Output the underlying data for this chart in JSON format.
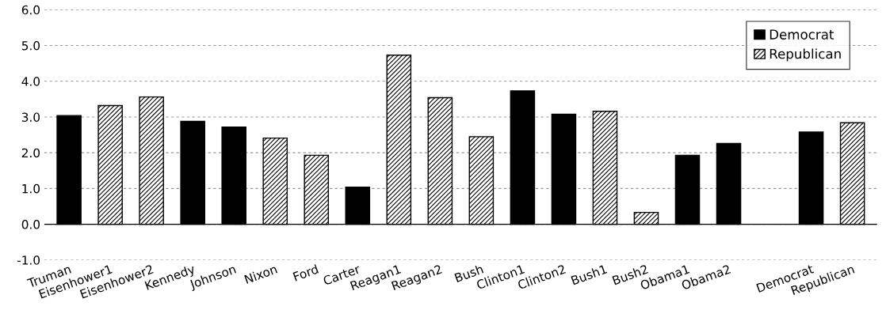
{
  "chart_data": {
    "type": "bar",
    "categories": [
      "Truman",
      "Eisenhower1",
      "Eisenhower2",
      "Kennedy",
      "Johnson",
      "Nixon",
      "Ford",
      "Carter",
      "Reagan1",
      "Reagan2",
      "Bush",
      "Clinton1",
      "Clinton2",
      "Bush1",
      "Bush2",
      "Obama1",
      "Obama2",
      null,
      "Democrat",
      "Republican"
    ],
    "series": [
      {
        "name": "Democrat",
        "color": "#000000",
        "values": [
          3.04,
          null,
          null,
          2.88,
          2.72,
          null,
          null,
          1.04,
          null,
          null,
          null,
          3.73,
          3.08,
          null,
          null,
          1.93,
          2.26,
          null,
          2.58,
          null
        ]
      },
      {
        "name": "Republican",
        "color": "#000000",
        "values": [
          null,
          3.32,
          3.56,
          null,
          null,
          2.41,
          1.93,
          null,
          4.73,
          3.54,
          2.45,
          null,
          null,
          3.16,
          0.33,
          null,
          null,
          null,
          null,
          2.84
        ]
      }
    ],
    "ylim": [
      -1.0,
      6.0
    ],
    "yticks": [
      {
        "value": -1,
        "label": "-1.0"
      },
      {
        "value": 0,
        "label": "0.0"
      },
      {
        "value": 1,
        "label": "1.0"
      },
      {
        "value": 2,
        "label": "2.0"
      },
      {
        "value": 3,
        "label": "3.0"
      },
      {
        "value": 4,
        "label": "4.0"
      },
      {
        "value": 5,
        "label": "5.0"
      },
      {
        "value": 6,
        "label": "6.0"
      }
    ],
    "grid": "y",
    "legend": "top right"
  }
}
